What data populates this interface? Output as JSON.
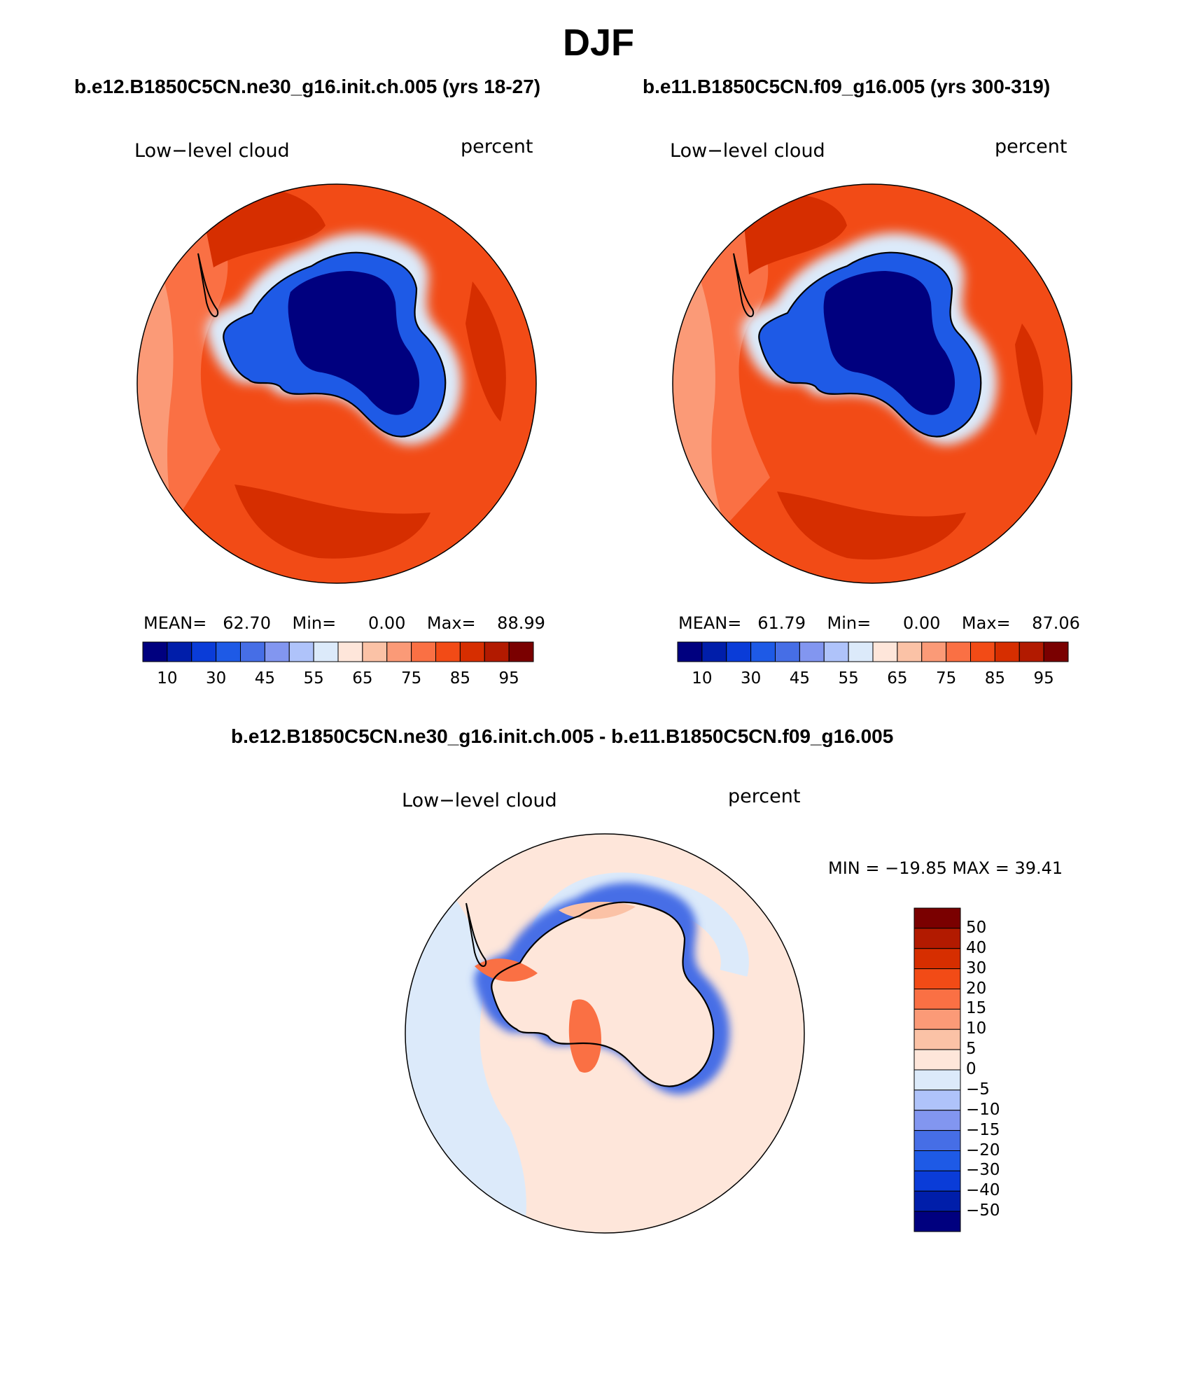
{
  "figure": {
    "title": "DJF",
    "case1_header": "b.e12.B1850C5CN.ne30_g16.init.ch.005 (yrs 18-27)",
    "case2_header": "b.e11.B1850C5CN.f09_g16.005 (yrs 300-319)",
    "diff_header": "b.e12.B1850C5CN.ne30_g16.init.ch.005 - b.e11.B1850C5CN.f09_g16.005"
  },
  "panels": [
    {
      "variable": "Low−level cloud",
      "units": "percent",
      "stats": {
        "mean_label": "MEAN=",
        "mean": "62.70",
        "min_label": "Min=",
        "min": "0.00",
        "max_label": "Max=",
        "max": "88.99"
      }
    },
    {
      "variable": "Low−level cloud",
      "units": "percent",
      "stats": {
        "mean_label": "MEAN=",
        "mean": "61.79",
        "min_label": "Min=",
        "min": "0.00",
        "max_label": "Max=",
        "max": "87.06"
      }
    },
    {
      "variable": "Low−level cloud",
      "units": "percent",
      "stats_text": "MIN = −19.85 MAX =   39.41"
    }
  ],
  "colorbar_abs": {
    "colors": [
      "#00007f",
      "#001eaa",
      "#0a3cd8",
      "#1e5ae6",
      "#466ee6",
      "#8296f0",
      "#afc3fa",
      "#dceafa",
      "#fee6da",
      "#fbc2a6",
      "#fb9a77",
      "#fa7044",
      "#f24b16",
      "#d62e00",
      "#b21a00",
      "#7a0000"
    ],
    "tick_labels": [
      "10",
      "30",
      "45",
      "55",
      "65",
      "75",
      "85",
      "95"
    ]
  },
  "colorbar_diff": {
    "colors": [
      "#7a0000",
      "#b21a00",
      "#d62e00",
      "#f24b16",
      "#fa7044",
      "#fb9a77",
      "#fbc2a6",
      "#fee6da",
      "#dceafa",
      "#afc3fa",
      "#8296f0",
      "#466ee6",
      "#1e5ae6",
      "#0a3cd8",
      "#001eaa",
      "#00007f"
    ],
    "tick_labels": [
      "50",
      "40",
      "30",
      "20",
      "15",
      "10",
      "5",
      "0",
      "−5",
      "−10",
      "−15",
      "−20",
      "−30",
      "−40",
      "−50"
    ]
  },
  "map_colors": {
    "ocean_base_abs": "#f24b16",
    "ocean_high_abs": "#d62e00",
    "ice_edge_abs": "#1e5ae6",
    "ice_core_abs": "#00007f",
    "diff_base": "#fee6da",
    "diff_neg": "#dceafa",
    "diff_coast": "#466ee6",
    "diff_pos": "#fa7044"
  }
}
